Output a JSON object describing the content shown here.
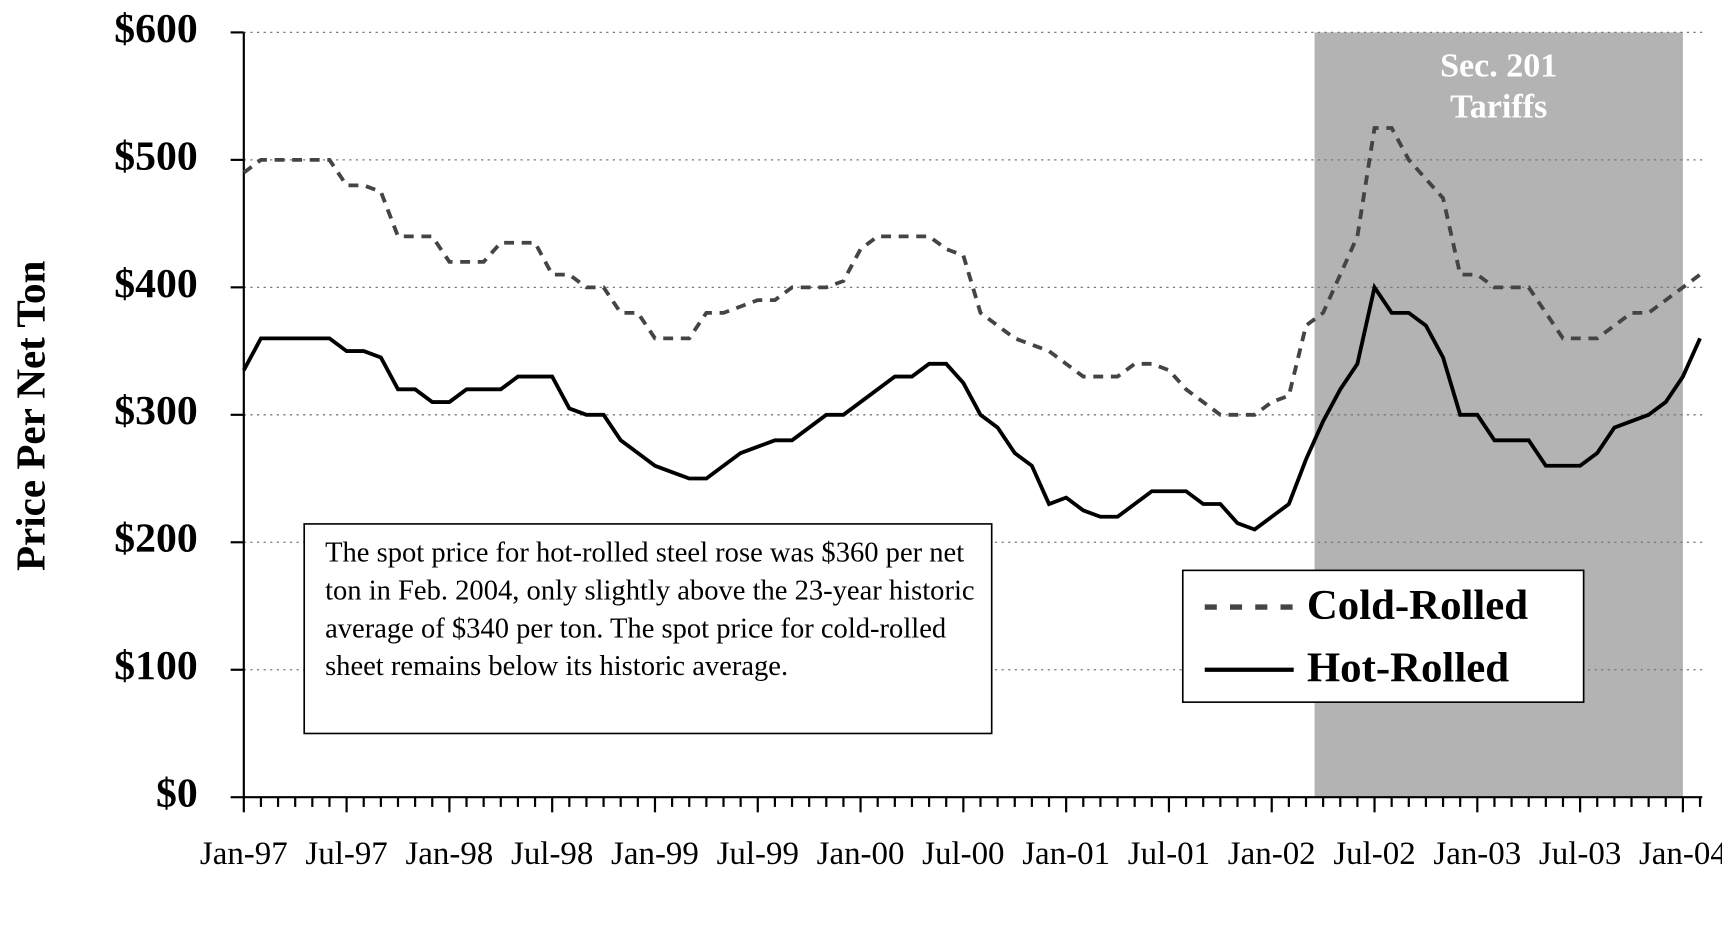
{
  "chart_data": {
    "type": "line",
    "y_label": "Price Per Net Ton",
    "categories": [
      "Jan-97",
      null,
      null,
      null,
      null,
      null,
      "Jul-97",
      null,
      null,
      null,
      null,
      null,
      "Jan-98",
      null,
      null,
      null,
      null,
      null,
      "Jul-98",
      null,
      null,
      null,
      null,
      null,
      "Jan-99",
      null,
      null,
      null,
      null,
      null,
      "Jul-99",
      null,
      null,
      null,
      null,
      null,
      "Jan-00",
      null,
      null,
      null,
      null,
      null,
      "Jul-00",
      null,
      null,
      null,
      null,
      null,
      "Jan-01",
      null,
      null,
      null,
      null,
      null,
      "Jul-01",
      null,
      null,
      null,
      null,
      null,
      "Jan-02",
      null,
      null,
      null,
      null,
      null,
      "Jul-02",
      null,
      null,
      null,
      null,
      null,
      "Jan-03",
      null,
      null,
      null,
      null,
      null,
      "Jul-03",
      null,
      null,
      null,
      null,
      null,
      "Jan-04",
      null
    ],
    "series": [
      {
        "name": "Cold-Rolled",
        "color": "#444444",
        "dash": true,
        "values": [
          490,
          500,
          500,
          500,
          500,
          500,
          480,
          480,
          475,
          440,
          440,
          440,
          420,
          420,
          420,
          435,
          435,
          435,
          410,
          410,
          400,
          400,
          380,
          380,
          360,
          360,
          360,
          380,
          380,
          385,
          390,
          390,
          400,
          400,
          400,
          405,
          430,
          440,
          440,
          440,
          440,
          430,
          425,
          380,
          370,
          360,
          355,
          350,
          340,
          330,
          330,
          330,
          340,
          340,
          335,
          320,
          310,
          300,
          300,
          300,
          310,
          315,
          370,
          380,
          410,
          440,
          525,
          525,
          500,
          485,
          470,
          410,
          410,
          400,
          400,
          400,
          380,
          360,
          360,
          360,
          370,
          380,
          380,
          390,
          400,
          410
        ]
      },
      {
        "name": "Hot-Rolled",
        "color": "#000000",
        "dash": false,
        "values": [
          335,
          360,
          360,
          360,
          360,
          360,
          350,
          350,
          345,
          320,
          320,
          310,
          310,
          320,
          320,
          320,
          330,
          330,
          330,
          305,
          300,
          300,
          280,
          270,
          260,
          255,
          250,
          250,
          260,
          270,
          275,
          280,
          280,
          290,
          300,
          300,
          310,
          320,
          330,
          330,
          340,
          340,
          325,
          300,
          290,
          270,
          260,
          230,
          235,
          225,
          220,
          220,
          230,
          240,
          240,
          240,
          230,
          230,
          215,
          210,
          220,
          230,
          265,
          295,
          320,
          340,
          400,
          380,
          380,
          370,
          345,
          300,
          300,
          280,
          280,
          280,
          260,
          260,
          260,
          270,
          290,
          295,
          300,
          310,
          330,
          360
        ]
      }
    ],
    "ylim": [
      0,
      600
    ],
    "yticks": [
      {
        "value": 0,
        "label": "$0"
      },
      {
        "value": 100,
        "label": "$100"
      },
      {
        "value": 200,
        "label": "$200"
      },
      {
        "value": 300,
        "label": "$300"
      },
      {
        "value": 400,
        "label": "$400"
      },
      {
        "value": 500,
        "label": "$500"
      },
      {
        "value": 600,
        "label": "$600"
      }
    ],
    "grid": true,
    "shade": {
      "label": "Sec. 201 Tariffs",
      "from": 62.5,
      "to": 84,
      "color": "#b3b3b3"
    },
    "annotation": "The spot price for hot-rolled steel rose was $360 per net ton in Feb. 2004, only slightly above the 23-year historic average of $340 per ton. The spot price for cold-rolled sheet remains below its historic average.",
    "legend": "right"
  }
}
